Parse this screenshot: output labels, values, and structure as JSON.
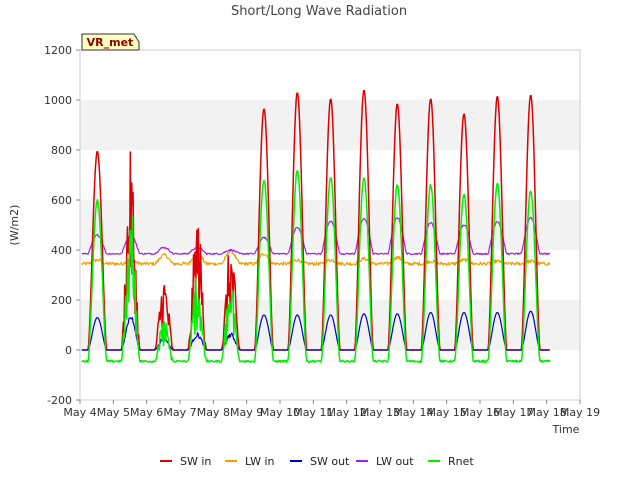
{
  "chart_data": {
    "type": "line",
    "title": "Short/Long Wave Radiation",
    "xlabel": "Time",
    "ylabel": "(W/m2)",
    "station_badge": "VR_met",
    "x_ticks": [
      "May 4",
      "May 5",
      "May 6",
      "May 7",
      "May 8",
      "May 9",
      "May 10",
      "May 11",
      "May 12",
      "May 13",
      "May 14",
      "May 15",
      "May 16",
      "May 17",
      "May 18",
      "May 19"
    ],
    "y_ticks": [
      -200,
      0,
      200,
      400,
      600,
      800,
      1000,
      1200
    ],
    "ylim": [
      -200,
      1200
    ],
    "xlim_days": [
      "May 4",
      "May 19"
    ],
    "grid": "horizontal bands",
    "legend_position": "bottom",
    "x_day_start": "May 4",
    "peak_day": [
      "May 5",
      "May 6",
      "May 7",
      "May 8",
      "May 9",
      "May 10",
      "May 11",
      "May 12",
      "May 13",
      "May 14",
      "May 15",
      "May 16",
      "May 17",
      "May 18"
    ],
    "series": [
      {
        "name": "SW in",
        "color": "#dd0000",
        "night": 0,
        "daily_peak": [
          795,
          310,
          550,
          440,
          965,
          1030,
          1005,
          1040,
          985,
          1005,
          945,
          1015,
          1020,
          1030
        ]
      },
      {
        "name": "LW in",
        "color": "#f0a000",
        "night": 345,
        "daily_peak": [
          360,
          380,
          385,
          395,
          385,
          360,
          360,
          365,
          370,
          355,
          360,
          355,
          355,
          375
        ]
      },
      {
        "name": "SW out",
        "color": "#0000cc",
        "night": 0,
        "daily_peak": [
          130,
          45,
          60,
          60,
          140,
          140,
          140,
          145,
          145,
          150,
          150,
          150,
          155,
          155
        ]
      },
      {
        "name": "LW out",
        "color": "#a020f0",
        "night": 385,
        "daily_peak": [
          460,
          410,
          410,
          400,
          450,
          490,
          515,
          525,
          530,
          510,
          500,
          515,
          530,
          570
        ]
      },
      {
        "name": "Rnet",
        "color": "#00ee00",
        "night": -45,
        "daily_peak": [
          600,
          130,
          350,
          290,
          680,
          720,
          690,
          690,
          660,
          660,
          620,
          665,
          635,
          640
        ]
      }
    ]
  }
}
